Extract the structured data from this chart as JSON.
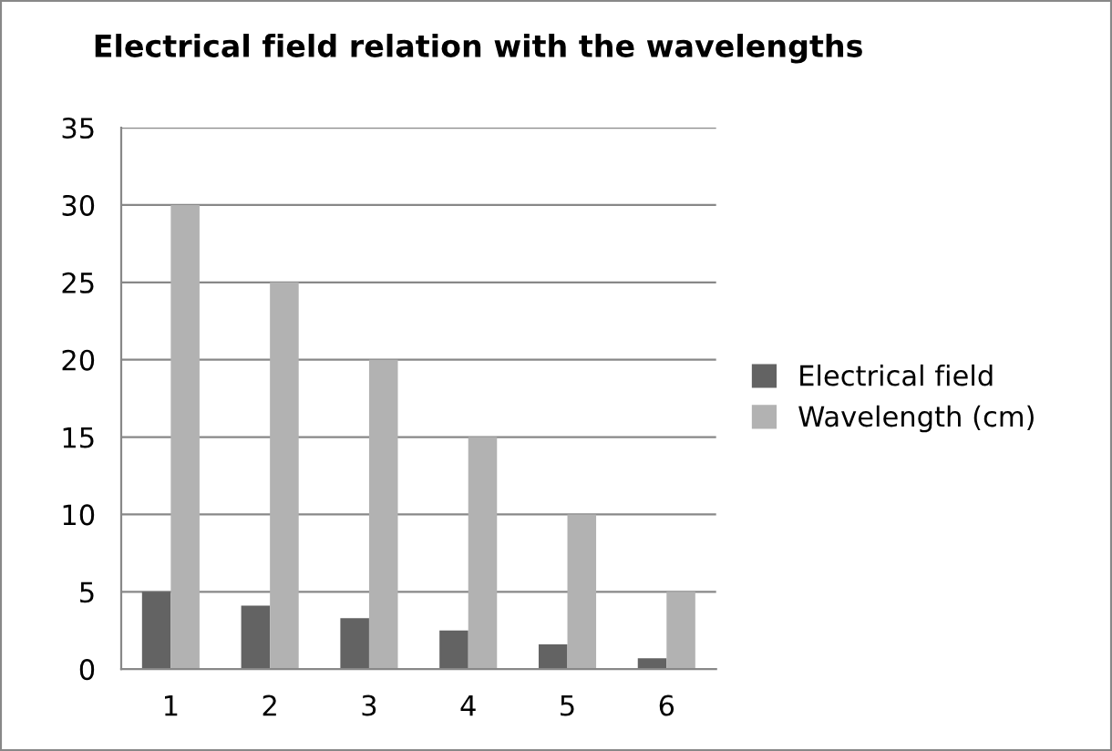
{
  "chart_data": {
    "type": "bar",
    "title": "Electrical field relation with the wavelengths",
    "categories": [
      "1",
      "2",
      "3",
      "4",
      "5",
      "6"
    ],
    "series": [
      {
        "name": "Electrical field",
        "color": "#636363",
        "values": [
          5,
          4.1,
          3.3,
          2.5,
          1.6,
          0.7
        ]
      },
      {
        "name": "Wavelength (cm)",
        "color": "#b2b2b2",
        "values": [
          30,
          25,
          20,
          15,
          10,
          5
        ]
      }
    ],
    "ylim": [
      0,
      35
    ],
    "yticks": [
      0,
      5,
      10,
      15,
      20,
      25,
      30,
      35
    ],
    "grid": "y",
    "legend": "right"
  }
}
